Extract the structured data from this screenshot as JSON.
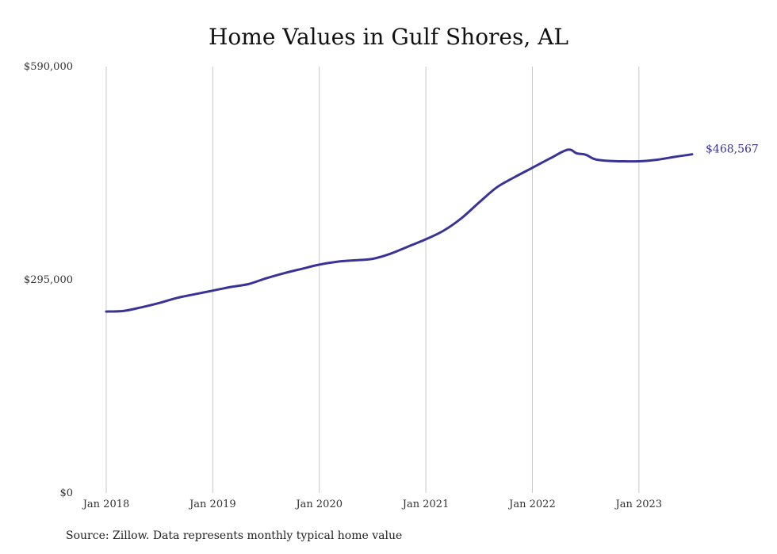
{
  "title": "Home Values in Gulf Shores, AL",
  "source": "Source: Zillow. Data represents monthly typical home value",
  "colors": {
    "line": "#3a3397",
    "grid": "#c8c8c8",
    "text": "#333333"
  },
  "chart_data": {
    "type": "line",
    "title": "Home Values in Gulf Shores, AL",
    "xlabel": "",
    "ylabel": "",
    "ylim": [
      0,
      590000
    ],
    "y_ticks": [
      {
        "value": 0,
        "label": "$0"
      },
      {
        "value": 295000,
        "label": "$295,000"
      },
      {
        "value": 590000,
        "label": "$590,000"
      }
    ],
    "x_ticks": [
      {
        "value": 2018.0,
        "label": "Jan 2018"
      },
      {
        "value": 2019.0,
        "label": "Jan 2019"
      },
      {
        "value": 2020.0,
        "label": "Jan 2020"
      },
      {
        "value": 2021.0,
        "label": "Jan 2021"
      },
      {
        "value": 2022.0,
        "label": "Jan 2022"
      },
      {
        "value": 2023.0,
        "label": "Jan 2023"
      }
    ],
    "xlim": [
      2018.0,
      2023.5
    ],
    "grid": "vertical",
    "end_label": "$468,567",
    "series": [
      {
        "x": [
          2018.0,
          2018.167,
          2018.333,
          2018.5,
          2018.667,
          2018.833,
          2019.0,
          2019.167,
          2019.333,
          2019.5,
          2019.667,
          2019.833,
          2020.0,
          2020.167,
          2020.333,
          2020.5,
          2020.667,
          2020.833,
          2021.0,
          2021.167,
          2021.333,
          2021.5,
          2021.667,
          2021.833,
          2022.0,
          2022.167,
          2022.333,
          2022.417,
          2022.5,
          2022.583,
          2022.667,
          2022.833,
          2023.0,
          2023.167,
          2023.333,
          2023.5
        ],
        "y": [
          251000,
          252000,
          257000,
          263000,
          270000,
          275000,
          280000,
          285000,
          289000,
          297000,
          304000,
          310000,
          316000,
          320000,
          322000,
          324000,
          331000,
          341000,
          351000,
          363000,
          380000,
          402000,
          423000,
          437000,
          450000,
          463000,
          475000,
          470000,
          468000,
          462000,
          460000,
          459000,
          459000,
          461000,
          465000,
          468567
        ]
      }
    ]
  }
}
